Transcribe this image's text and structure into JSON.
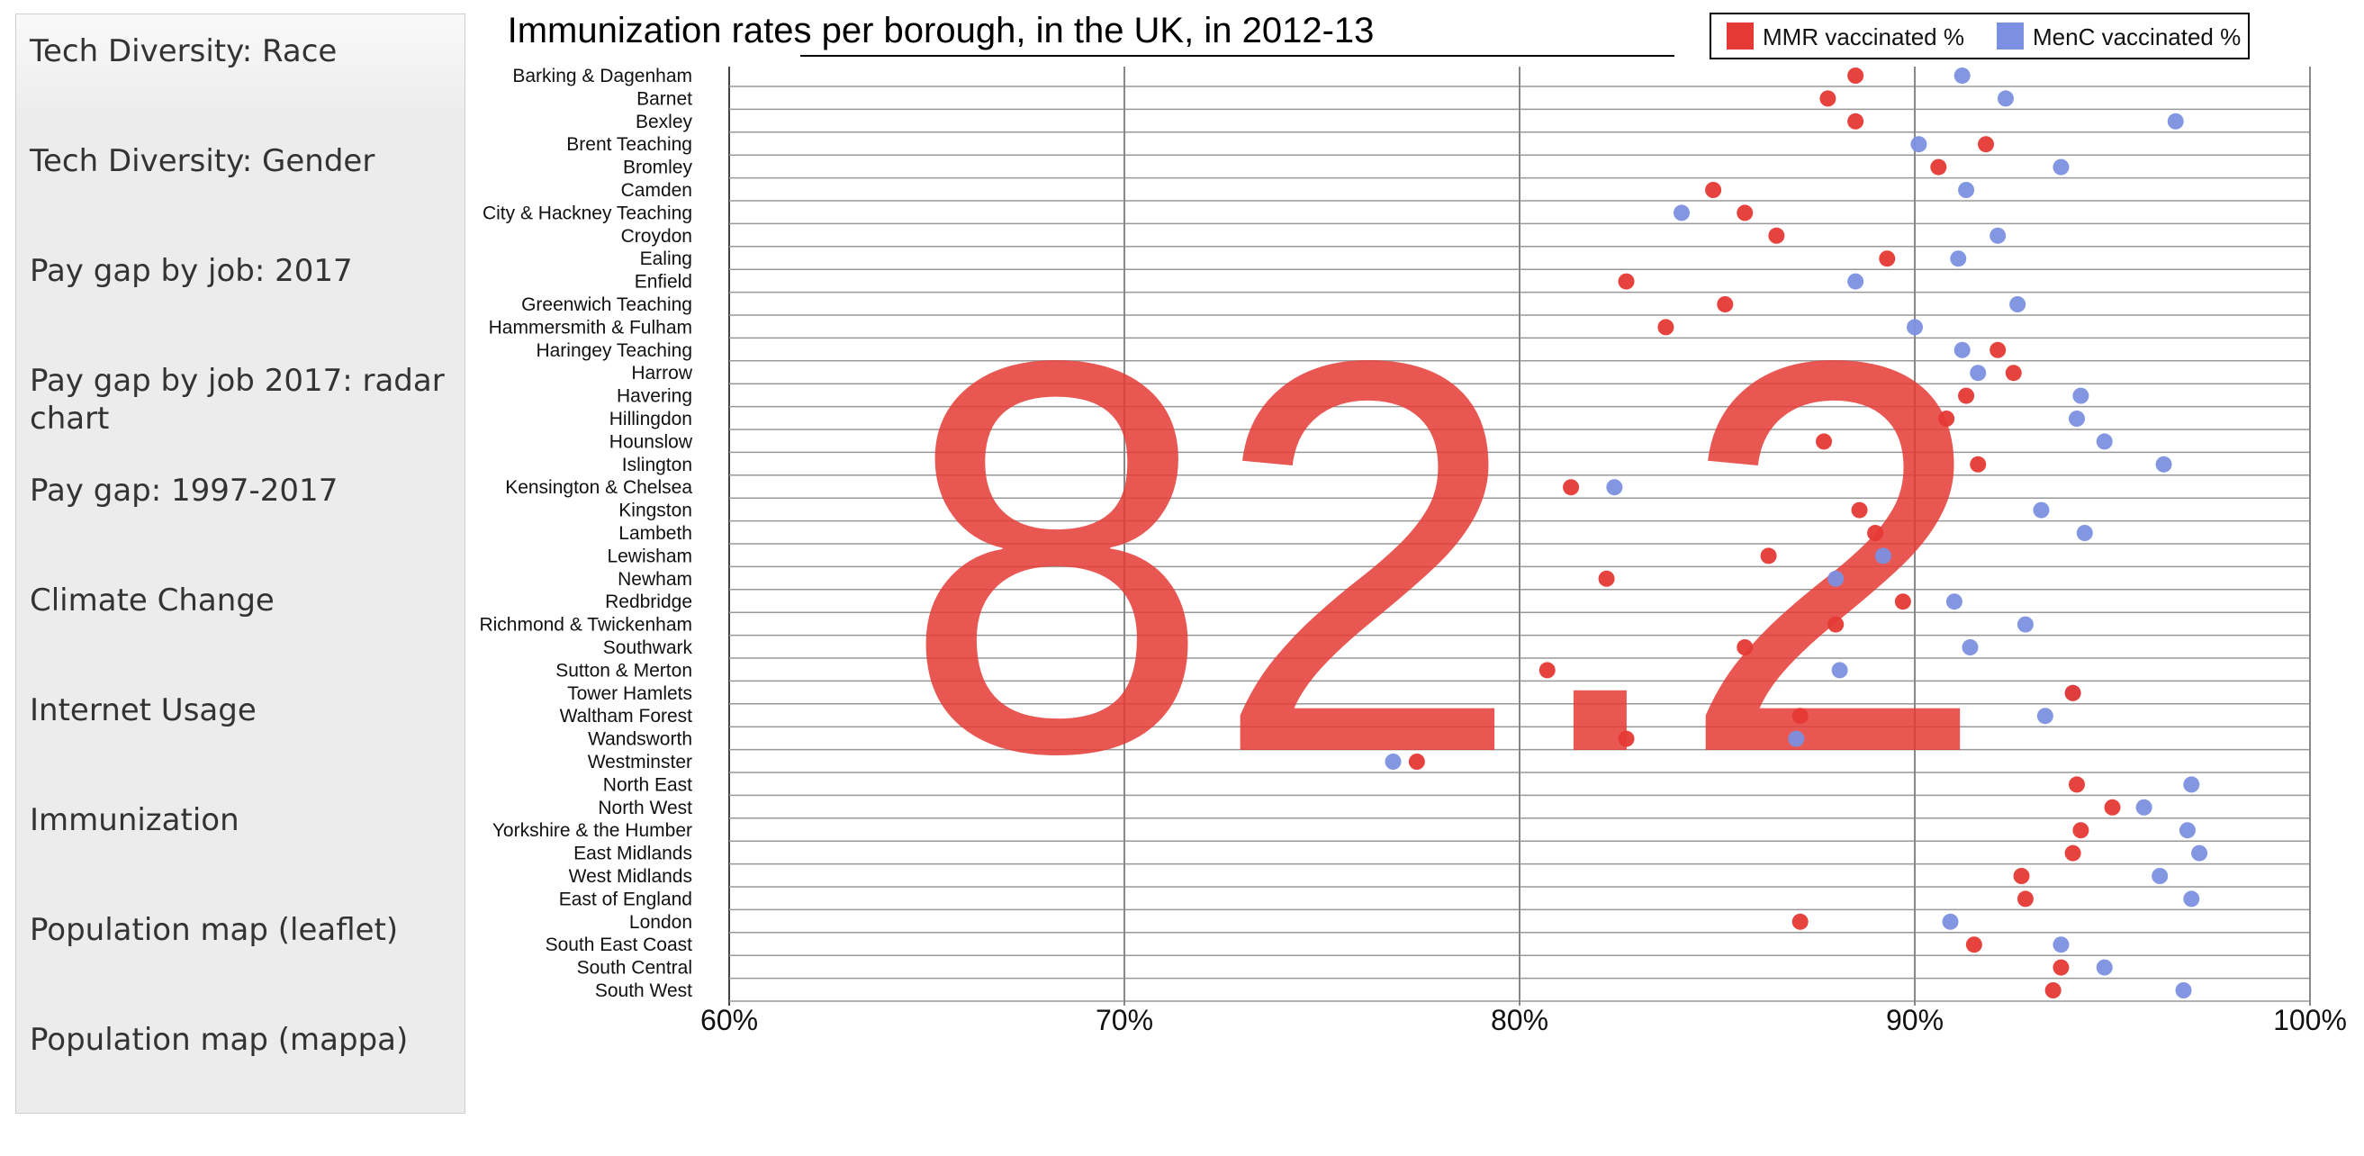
{
  "nav": {
    "items": [
      {
        "label": "Tech Diversity: Race"
      },
      {
        "label": "Tech Diversity: Gender"
      },
      {
        "label": "Pay gap by job: 2017"
      },
      {
        "label": "Pay gap by job 2017: radar chart"
      },
      {
        "label": "Pay gap: 1997-2017"
      },
      {
        "label": "Climate Change"
      },
      {
        "label": "Internet Usage"
      },
      {
        "label": "Immunization"
      },
      {
        "label": "Population map (leaflet)"
      },
      {
        "label": "Population map (mappa)"
      }
    ]
  },
  "highlight_value": "82.2",
  "chart_data": {
    "type": "scatter",
    "title": "Immunization rates per borough, in the UK, in 2012-13",
    "categories": [
      "Barking & Dagenham",
      "Barnet",
      "Bexley",
      "Brent Teaching",
      "Bromley",
      "Camden",
      "City & Hackney Teaching",
      "Croydon",
      "Ealing",
      "Enfield",
      "Greenwich Teaching",
      "Hammersmith & Fulham",
      "Haringey Teaching",
      "Harrow",
      "Havering",
      "Hillingdon",
      "Hounslow",
      "Islington",
      "Kensington & Chelsea",
      "Kingston",
      "Lambeth",
      "Lewisham",
      "Newham",
      "Redbridge",
      "Richmond & Twickenham",
      "Southwark",
      "Sutton & Merton",
      "Tower Hamlets",
      "Waltham Forest",
      "Wandsworth",
      "Westminster",
      "North East",
      "North West",
      "Yorkshire & the Humber",
      "East Midlands",
      "West Midlands",
      "East of England",
      "London",
      "South East Coast",
      "South Central",
      "South West"
    ],
    "series": [
      {
        "name": "MMR vaccinated %",
        "color": "#e53935",
        "values": [
          88.5,
          87.8,
          88.5,
          91.8,
          90.6,
          84.9,
          85.7,
          86.5,
          89.3,
          82.7,
          85.2,
          83.7,
          92.1,
          92.5,
          91.3,
          90.8,
          87.7,
          91.6,
          81.3,
          88.6,
          89.0,
          86.3,
          82.2,
          89.7,
          88.0,
          85.7,
          80.7,
          94.0,
          87.1,
          82.7,
          77.4,
          94.1,
          95.0,
          94.2,
          94.0,
          92.7,
          92.8,
          87.1,
          91.5,
          93.7,
          93.5
        ]
      },
      {
        "name": "MenC vaccinated %",
        "color": "#7b90e0",
        "values": [
          91.2,
          92.3,
          96.6,
          90.1,
          93.7,
          91.3,
          84.1,
          92.1,
          91.1,
          88.5,
          92.6,
          90.0,
          91.2,
          91.6,
          94.2,
          94.1,
          94.8,
          96.3,
          82.4,
          93.2,
          94.3,
          89.2,
          88.0,
          91.0,
          92.8,
          91.4,
          88.1,
          94.0,
          93.3,
          87.0,
          76.8,
          97.0,
          95.8,
          96.9,
          97.2,
          96.2,
          97.0,
          90.9,
          93.7,
          94.8,
          96.8
        ]
      }
    ],
    "xlim": [
      60,
      100
    ],
    "x_ticks": [
      "60%",
      "70%",
      "80%",
      "90%",
      "100%"
    ],
    "grid": true,
    "legend_position": "top-right"
  }
}
